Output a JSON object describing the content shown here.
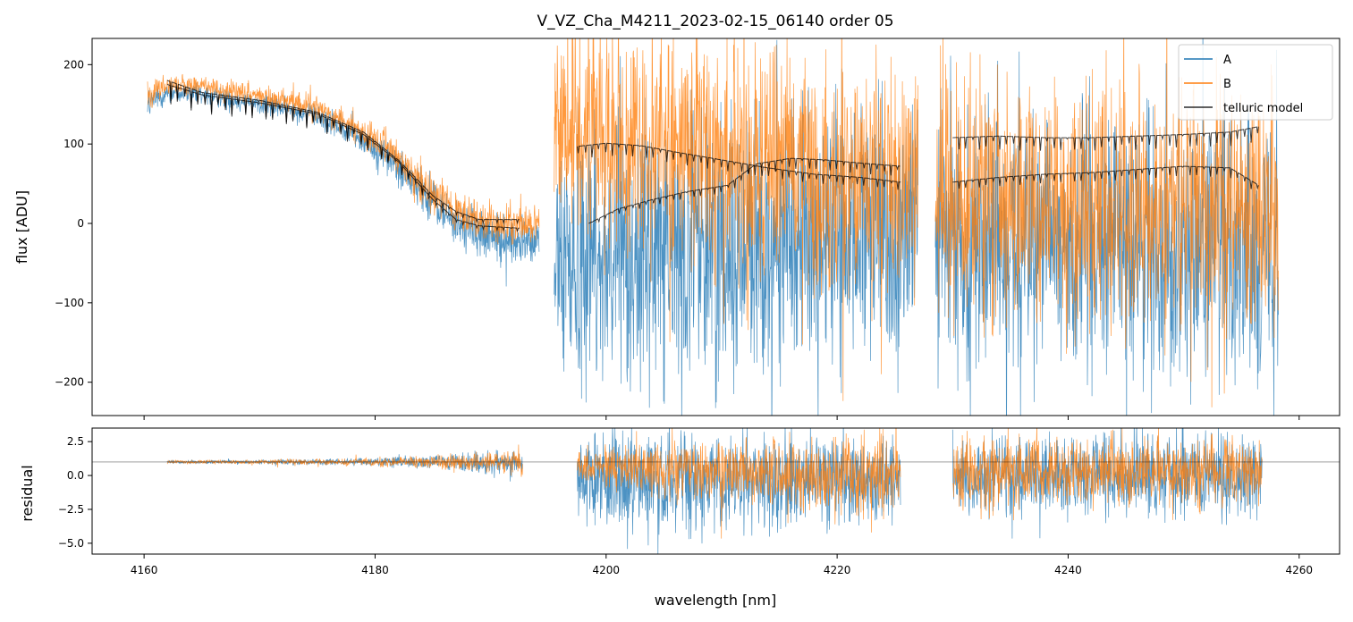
{
  "chart_data": [
    {
      "type": "line",
      "title": "V_VZ_Cha_M4211_2023-02-15_06140  order 05",
      "xlabel": "",
      "ylabel": "flux [ADU]",
      "xlim": [
        4155.5,
        4263.5
      ],
      "ylim": [
        -242,
        233
      ],
      "xticks": [
        4160,
        4180,
        4200,
        4220,
        4240,
        4260
      ],
      "yticks": [
        200,
        100,
        0,
        -100,
        -200
      ],
      "ytick_labels": [
        "200",
        "100",
        "0",
        "−100",
        "−200"
      ],
      "legend": {
        "position": "top-right",
        "entries": [
          {
            "label": "A",
            "color": "#1f77b4"
          },
          {
            "label": "B",
            "color": "#ff7f0e"
          },
          {
            "label": "telluric model",
            "color": "#000000"
          }
        ]
      },
      "series": [
        {
          "name": "A",
          "color": "#1f77b4",
          "segments": [
            {
              "x": [
                4160.3,
                4162,
                4166,
                4170,
                4174,
                4178,
                4181,
                4184,
                4187,
                4190,
                4194.2
              ],
              "y": [
                150,
                165,
                160,
                150,
                140,
                115,
                85,
                40,
                0,
                -20,
                -25
              ],
              "noise": [
                20,
                12,
                12,
                12,
                14,
                16,
                22,
                28,
                28,
                28,
                28
              ]
            },
            {
              "x": [
                4195.5,
                4200,
                4205,
                4210,
                4215,
                4220,
                4225,
                4227
              ],
              "y": [
                -40,
                -40,
                -35,
                -30,
                -25,
                -20,
                -15,
                -15
              ],
              "noise": [
                150,
                160,
                160,
                160,
                160,
                160,
                160,
                160
              ]
            },
            {
              "x": [
                4228.5,
                4235,
                4240,
                4245,
                4250,
                4255,
                4258.2
              ],
              "y": [
                -20,
                -25,
                -25,
                -25,
                -25,
                -25,
                -25
              ],
              "noise": [
                160,
                160,
                160,
                160,
                160,
                160,
                160
              ]
            }
          ]
        },
        {
          "name": "B",
          "color": "#ff7f0e",
          "segments": [
            {
              "x": [
                4160.3,
                4162,
                4166,
                4170,
                4174,
                4178,
                4181,
                4184,
                4187,
                4190,
                4194.2
              ],
              "y": [
                160,
                175,
                170,
                160,
                150,
                125,
                95,
                50,
                15,
                0,
                0
              ],
              "noise": [
                20,
                12,
                12,
                12,
                14,
                16,
                22,
                26,
                24,
                24,
                24
              ]
            },
            {
              "x": [
                4195.5,
                4200,
                4205,
                4210,
                4215,
                4220,
                4225,
                4227
              ],
              "y": [
                120,
                110,
                95,
                80,
                70,
                55,
                50,
                50
              ],
              "noise": [
                120,
                130,
                140,
                140,
                140,
                140,
                140,
                140
              ]
            },
            {
              "x": [
                4228.5,
                4235,
                4240,
                4245,
                4250,
                4255,
                4258.2
              ],
              "y": [
                40,
                30,
                20,
                15,
                15,
                20,
                20
              ],
              "noise": [
                140,
                150,
                150,
                150,
                150,
                150,
                150
              ]
            }
          ]
        },
        {
          "name": "telluric model",
          "color": "#000000",
          "segments": [
            {
              "x": [
                4162,
                4165,
                4170,
                4175,
                4179,
                4182,
                4185,
                4187,
                4189,
                4192.5
              ],
              "y": [
                180,
                165,
                155,
                140,
                115,
                80,
                35,
                15,
                5,
                5
              ]
            },
            {
              "x": [
                4162,
                4165,
                4170,
                4175,
                4179,
                4182,
                4185,
                4187,
                4189,
                4192.5
              ],
              "y": [
                175,
                162,
                152,
                138,
                112,
                78,
                30,
                5,
                -3,
                -6
              ]
            },
            {
              "x": [
                4197.5,
                4200,
                4203,
                4206,
                4210,
                4214,
                4218,
                4222,
                4225.5
              ],
              "y": [
                97,
                101,
                98,
                90,
                80,
                70,
                62,
                58,
                52
              ]
            },
            {
              "x": [
                4198.5,
                4201,
                4204,
                4207,
                4210.5,
                4213,
                4216,
                4219,
                4222,
                4225.5
              ],
              "y": [
                0,
                18,
                30,
                40,
                48,
                75,
                82,
                80,
                76,
                72
              ]
            },
            {
              "x": [
                4230,
                4234,
                4238,
                4242,
                4246,
                4250,
                4254,
                4256.5
              ],
              "y": [
                108,
                110,
                108,
                108,
                110,
                112,
                115,
                122
              ]
            },
            {
              "x": [
                4230,
                4234,
                4238,
                4242,
                4246,
                4250,
                4254,
                4256.5
              ],
              "y": [
                52,
                58,
                62,
                64,
                68,
                72,
                70,
                48
              ]
            }
          ]
        }
      ]
    },
    {
      "type": "line",
      "title": "",
      "xlabel": "wavelength [nm]",
      "ylabel": "residual",
      "xlim": [
        4155.5,
        4263.5
      ],
      "ylim": [
        -5.8,
        3.5
      ],
      "xticks": [
        4160,
        4180,
        4200,
        4220,
        4240,
        4260
      ],
      "xtick_labels": [
        "4160",
        "4180",
        "4200",
        "4220",
        "4240",
        "4260"
      ],
      "yticks": [
        2.5,
        0.0,
        -2.5,
        -5.0
      ],
      "ytick_labels": [
        "2.5",
        "0.0",
        "−2.5",
        "−5.0"
      ],
      "reference_line": {
        "y": 1.0,
        "color": "#000000"
      },
      "series": [
        {
          "name": "A",
          "color": "#1f77b4",
          "segments": [
            {
              "x": [
                4162,
                4170,
                4180,
                4185,
                4190,
                4192.8
              ],
              "y": [
                1.0,
                1.0,
                1.0,
                1.0,
                0.9,
                0.9
              ],
              "noise": [
                0.12,
                0.15,
                0.3,
                0.55,
                0.9,
                1.0
              ]
            },
            {
              "x": [
                4197.5,
                4200,
                4205,
                4210,
                4215,
                4220,
                4225.5
              ],
              "y": [
                0.0,
                -0.5,
                -0.5,
                -0.5,
                -0.5,
                -0.5,
                -0.5
              ],
              "noise": [
                3.0,
                3.5,
                3.5,
                3.3,
                3.3,
                3.3,
                3.3
              ]
            },
            {
              "x": [
                4230,
                4235,
                4240,
                4245,
                4250,
                4256.8
              ],
              "y": [
                0.2,
                0.0,
                0.0,
                0.0,
                0.0,
                -0.2
              ],
              "noise": [
                3.0,
                3.0,
                3.0,
                3.0,
                3.0,
                3.2
              ]
            }
          ]
        },
        {
          "name": "B",
          "color": "#ff7f0e",
          "segments": [
            {
              "x": [
                4162,
                4170,
                4180,
                4185,
                4190,
                4192.8
              ],
              "y": [
                1.0,
                1.0,
                1.0,
                1.0,
                1.0,
                1.0
              ],
              "noise": [
                0.12,
                0.15,
                0.3,
                0.5,
                0.8,
                0.9
              ]
            },
            {
              "x": [
                4197.5,
                4200,
                4205,
                4210,
                4215,
                4220,
                4225.5
              ],
              "y": [
                0.7,
                0.6,
                0.4,
                0.3,
                0.2,
                0.1,
                0.0
              ],
              "noise": [
                1.3,
                1.6,
                2.0,
                2.3,
                2.5,
                2.7,
                2.8
              ]
            },
            {
              "x": [
                4230,
                4235,
                4240,
                4245,
                4250,
                4256.8
              ],
              "y": [
                0.3,
                0.3,
                0.3,
                0.3,
                0.3,
                0.3
              ],
              "noise": [
                2.4,
                2.4,
                2.4,
                2.4,
                2.4,
                2.4
              ]
            }
          ]
        }
      ]
    }
  ]
}
